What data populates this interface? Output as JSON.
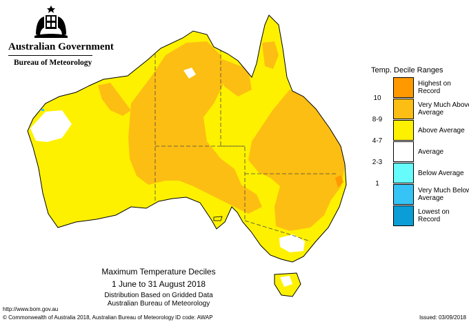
{
  "header": {
    "government": "Australian Government",
    "agency": "Bureau of Meteorology"
  },
  "legend": {
    "title": "Temp. Decile Ranges",
    "items": [
      {
        "label": "Highest on Record",
        "color": "#ff9900"
      },
      {
        "label": "Very Much Above Average",
        "color": "#fdbe13"
      },
      {
        "label": "Above Average",
        "color": "#fdf100"
      },
      {
        "label": "Average",
        "color": "#ffffff"
      },
      {
        "label": "Below Average",
        "color": "#66fcfc"
      },
      {
        "label": "Very Much Below Average",
        "color": "#36c3f6"
      },
      {
        "label": "Lowest on Record",
        "color": "#0a9dd6"
      }
    ],
    "ticks": [
      "10",
      "8-9",
      "4-7",
      "2-3",
      "1"
    ]
  },
  "map": {
    "title": "Maximum Temperature Deciles",
    "period": "1 June to 31 August 2018",
    "line1": "Distribution Based on Gridded Data",
    "line2": "Australian Bureau of Meteorology"
  },
  "footer": {
    "url": "http://www.bom.gov.au",
    "copyright": "© Commonwealth of Australia 2018, Australian Bureau of Meteorology",
    "id_code": "ID code: AWAP",
    "issued": "Issued: 03/09/2018"
  }
}
